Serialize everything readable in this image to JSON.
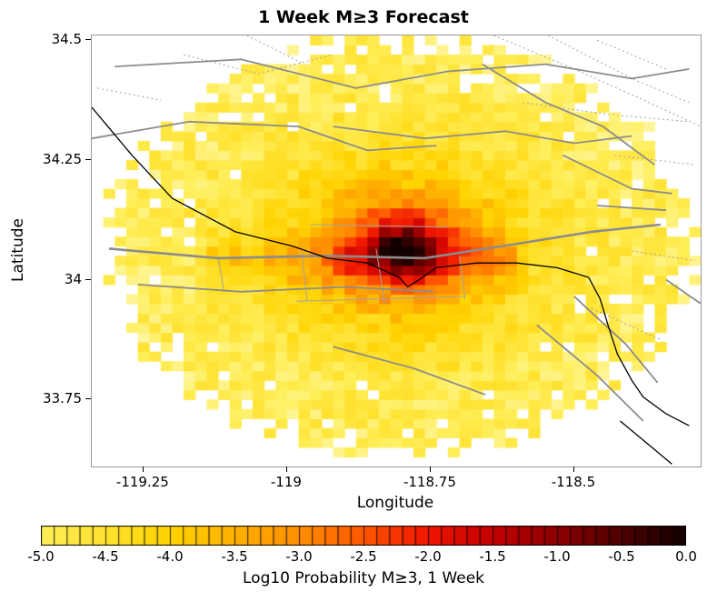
{
  "chart_data": {
    "type": "heatmap",
    "title": "1 Week M≥3 Forecast",
    "xlabel": "Longitude",
    "ylabel": "Latitude",
    "xlim": [
      -119.34,
      -118.28
    ],
    "ylim": [
      33.61,
      34.51
    ],
    "x_ticks": [
      -119.25,
      -119,
      -118.75,
      -118.5
    ],
    "x_tick_labels": [
      "-119.25",
      "-119",
      "-118.75",
      "-118.5"
    ],
    "y_ticks": [
      34.5,
      34.25,
      34,
      33.75
    ],
    "y_tick_labels": [
      "34.5",
      "34.25",
      "34",
      "33.75"
    ],
    "grid_cell_deg": 0.02,
    "field": {
      "description": "Log10 weekly M>=3 probability on a 0.02-degree grid; decays radially from a hotspot near Malibu/Santa Monica with cell-level noise; white outside roughly elliptical forecast footprint",
      "center_lon": -118.8,
      "center_lat": 34.07,
      "extent_lon": 0.5,
      "extent_lat": 0.43,
      "peak_log10p": 0.0,
      "background_log10p": -5.0,
      "decay_scale": 0.22,
      "peak_boost": 0.35,
      "noise_amp": 0.38,
      "seed": 20250107,
      "ridge": {
        "lat": 34.04,
        "sigma": 0.05,
        "amp": 0.75,
        "lon_min": -119.14,
        "lon_max": -118.6
      }
    },
    "colormap_stops": [
      [
        -5.5,
        "#FFF9C0"
      ],
      [
        -5.0,
        "#FFEE58"
      ],
      [
        -4.5,
        "#FFE12E"
      ],
      [
        -4.0,
        "#FFD300"
      ],
      [
        -3.5,
        "#FFB000"
      ],
      [
        -3.0,
        "#FF8F00"
      ],
      [
        -2.5,
        "#FF5500"
      ],
      [
        -2.0,
        "#EF1500"
      ],
      [
        -1.5,
        "#C30000"
      ],
      [
        -1.0,
        "#8C0000"
      ],
      [
        -0.5,
        "#4C0000"
      ],
      [
        0.0,
        "#120000"
      ]
    ],
    "colorbar": {
      "label": "Log10 Probability M≥3, 1 Week",
      "min": -5,
      "max": 0,
      "n_cells": 50,
      "tick_labels": [
        "-5.0",
        "-4.5",
        "-4.0",
        "-3.5",
        "-3.0",
        "-2.5",
        "-2.0",
        "-1.5",
        "-1.0",
        "-0.5",
        "0.0"
      ]
    },
    "overlays": {
      "fault_color": "#8C8C8C",
      "thin_fault_color": "#A3A3A3",
      "coastline_color": "#000000",
      "coastline": [
        [
          -119.34,
          34.36
        ],
        [
          -119.27,
          34.26
        ],
        [
          -119.2,
          34.17
        ],
        [
          -119.09,
          34.1
        ],
        [
          -118.99,
          34.07
        ],
        [
          -118.93,
          34.045
        ],
        [
          -118.86,
          34.035
        ],
        [
          -118.805,
          34.005
        ],
        [
          -118.79,
          33.985
        ],
        [
          -118.77,
          34.0
        ],
        [
          -118.74,
          34.025
        ],
        [
          -118.67,
          34.035
        ],
        [
          -118.6,
          34.035
        ],
        [
          -118.53,
          34.025
        ],
        [
          -118.475,
          34.005
        ],
        [
          -118.455,
          33.96
        ],
        [
          -118.44,
          33.9
        ],
        [
          -118.425,
          33.845
        ],
        [
          -118.4,
          33.79
        ],
        [
          -118.38,
          33.755
        ],
        [
          -118.34,
          33.72
        ],
        [
          -118.3,
          33.695
        ]
      ],
      "coastline2": [
        [
          -118.42,
          33.705
        ],
        [
          -118.37,
          33.655
        ],
        [
          -118.33,
          33.615
        ]
      ],
      "faults_major": [
        [
          [
            -119.31,
            34.065
          ],
          [
            -119.12,
            34.045
          ],
          [
            -118.93,
            34.05
          ],
          [
            -118.76,
            34.045
          ],
          [
            -118.6,
            34.075
          ],
          [
            -118.47,
            34.1
          ],
          [
            -118.35,
            34.115
          ]
        ]
      ],
      "faults_solid": [
        [
          [
            -119.3,
            34.445
          ],
          [
            -119.08,
            34.46
          ],
          [
            -118.88,
            34.4
          ],
          [
            -118.72,
            34.435
          ],
          [
            -118.55,
            34.45
          ],
          [
            -118.4,
            34.42
          ],
          [
            -118.3,
            34.44
          ]
        ],
        [
          [
            -119.34,
            34.295
          ],
          [
            -119.17,
            34.33
          ],
          [
            -118.98,
            34.32
          ],
          [
            -118.86,
            34.27
          ],
          [
            -118.74,
            34.28
          ]
        ],
        [
          [
            -118.92,
            34.32
          ],
          [
            -118.76,
            34.295
          ],
          [
            -118.62,
            34.31
          ],
          [
            -118.5,
            34.285
          ],
          [
            -118.4,
            34.3
          ]
        ],
        [
          [
            -118.66,
            34.45
          ],
          [
            -118.55,
            34.37
          ],
          [
            -118.45,
            34.32
          ],
          [
            -118.36,
            34.24
          ]
        ],
        [
          [
            -118.52,
            34.26
          ],
          [
            -118.4,
            34.19
          ],
          [
            -118.33,
            34.18
          ]
        ],
        [
          [
            -118.46,
            34.155
          ],
          [
            -118.34,
            34.145
          ]
        ],
        [
          [
            -119.26,
            33.99
          ],
          [
            -119.08,
            33.975
          ],
          [
            -118.9,
            33.985
          ],
          [
            -118.745,
            33.975
          ]
        ],
        [
          [
            -118.92,
            33.86
          ],
          [
            -118.78,
            33.815
          ],
          [
            -118.655,
            33.76
          ]
        ],
        [
          [
            -118.565,
            33.905
          ],
          [
            -118.46,
            33.8
          ],
          [
            -118.38,
            33.705
          ]
        ],
        [
          [
            -118.5,
            33.965
          ],
          [
            -118.41,
            33.865
          ],
          [
            -118.355,
            33.785
          ]
        ],
        [
          [
            -118.34,
            34.0
          ],
          [
            -118.28,
            33.95
          ]
        ]
      ],
      "faults_thin": [
        [
          [
            -118.975,
            34.06
          ],
          [
            -118.965,
            33.955
          ]
        ],
        [
          [
            -118.845,
            34.065
          ],
          [
            -118.83,
            33.95
          ]
        ],
        [
          [
            -118.7,
            34.05
          ],
          [
            -118.69,
            33.96
          ]
        ],
        [
          [
            -118.985,
            33.955
          ],
          [
            -118.69,
            33.965
          ]
        ],
        [
          [
            -119.12,
            34.05
          ],
          [
            -119.11,
            33.975
          ]
        ],
        [
          [
            -118.96,
            34.115
          ],
          [
            -118.72,
            34.11
          ]
        ]
      ],
      "faults_dotted": [
        [
          [
            -118.64,
            34.51
          ],
          [
            -118.5,
            34.44
          ],
          [
            -118.37,
            34.37
          ],
          [
            -118.28,
            34.32
          ]
        ],
        [
          [
            -118.545,
            34.51
          ],
          [
            -118.4,
            34.42
          ],
          [
            -118.3,
            34.37
          ]
        ],
        [
          [
            -118.46,
            34.5
          ],
          [
            -118.34,
            34.44
          ]
        ],
        [
          [
            -118.59,
            34.37
          ],
          [
            -118.44,
            34.345
          ],
          [
            -118.3,
            34.33
          ]
        ],
        [
          [
            -119.18,
            34.47
          ],
          [
            -119.05,
            34.43
          ],
          [
            -118.92,
            34.47
          ]
        ],
        [
          [
            -119.07,
            34.51
          ],
          [
            -118.97,
            34.45
          ]
        ],
        [
          [
            -119.33,
            34.4
          ],
          [
            -119.22,
            34.375
          ]
        ],
        [
          [
            -118.43,
            34.26
          ],
          [
            -118.29,
            34.24
          ]
        ],
        [
          [
            -118.47,
            33.94
          ],
          [
            -118.35,
            33.875
          ]
        ],
        [
          [
            -118.4,
            34.06
          ],
          [
            -118.29,
            34.04
          ]
        ]
      ]
    }
  }
}
